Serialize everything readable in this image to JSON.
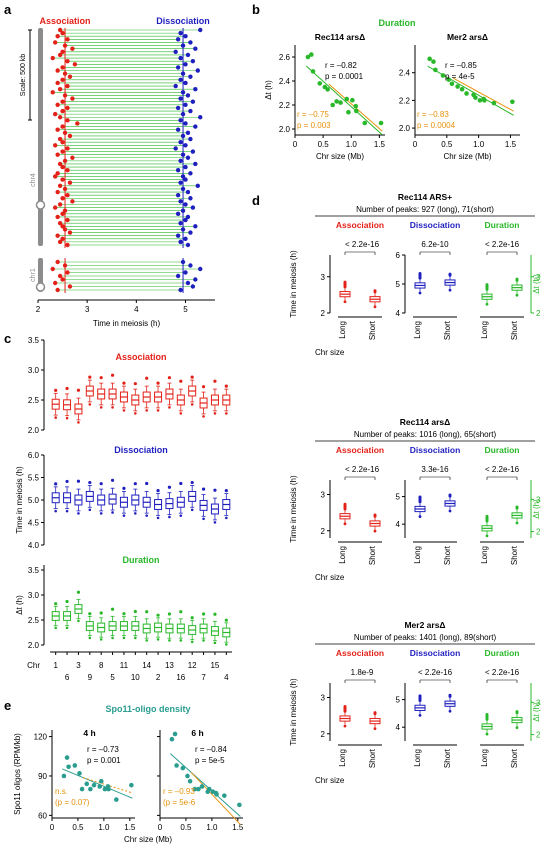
{
  "panel_labels": {
    "a": "a",
    "b": "b",
    "c": "c",
    "d": "d",
    "e": "e"
  },
  "colors": {
    "red": "#e32119",
    "blue": "#1f1fbf",
    "green": "#29b829",
    "orange": "#e8920c",
    "teal": "#2a9d8f",
    "grey": "#8c8c8c"
  },
  "chart_data": [
    {
      "panel": "a",
      "type": "scatter",
      "title_left": "Association",
      "title_right": "Dissociation",
      "scale_label": "Scale: 500 kb",
      "chromosome_labels": [
        "chr4",
        "chr1"
      ],
      "xlabel": "Time in meiosis (h)",
      "xticks": [
        2,
        3,
        4,
        5
      ],
      "xlim": [
        2,
        5.6
      ],
      "association_median": 2.55,
      "dissociation_median": 4.95,
      "chr4_association": [
        2.45,
        2.5,
        2.4,
        2.6,
        2.35,
        2.55,
        2.7,
        2.5,
        2.45,
        2.3,
        2.6,
        2.75,
        2.5,
        2.4,
        2.55,
        2.65,
        2.5,
        2.4,
        2.6,
        2.45,
        2.3,
        2.55,
        2.7,
        2.5,
        2.4,
        2.6,
        2.5,
        2.35,
        2.45,
        2.6,
        2.8,
        2.5,
        2.4,
        2.55,
        2.65,
        2.45,
        2.5,
        2.35,
        2.6,
        2.5,
        2.4,
        2.7,
        2.55,
        2.45,
        2.5,
        2.6,
        2.4,
        2.35,
        2.5,
        2.65,
        2.45,
        2.55,
        2.4,
        2.6,
        2.5,
        2.7,
        2.45,
        2.35,
        2.55,
        2.5,
        2.4,
        2.6,
        2.45,
        2.5,
        2.55,
        2.65,
        2.4,
        2.5,
        2.45,
        2.6
      ],
      "chr4_dissociation": [
        5.3,
        4.9,
        5.0,
        4.85,
        5.1,
        4.95,
        5.2,
        4.8,
        5.05,
        4.9,
        5.15,
        5.0,
        4.85,
        5.25,
        4.95,
        5.1,
        4.9,
        5.0,
        4.8,
        5.2,
        4.95,
        5.05,
        4.9,
        5.15,
        5.0,
        4.85,
        5.1,
        4.95,
        5.3,
        4.9,
        5.0,
        5.2,
        4.85,
        5.05,
        4.95,
        5.1,
        4.9,
        5.0,
        4.8,
        5.15,
        4.95,
        5.05,
        4.9,
        5.2,
        5.0,
        4.85,
        5.1,
        4.95,
        5.0,
        4.9,
        5.25,
        4.95,
        5.05,
        4.85,
        5.1,
        4.9,
        5.0,
        5.15,
        4.95,
        4.85,
        5.05,
        5.0,
        4.9,
        5.2,
        4.95,
        5.1,
        4.85,
        5.0,
        4.9,
        5.05
      ],
      "chr1_association": [
        2.4,
        2.55,
        2.3,
        2.6,
        2.45,
        2.5,
        2.35,
        2.65,
        2.4
      ],
      "chr1_dissociation": [
        4.95,
        5.1,
        5.3,
        5.0,
        4.85,
        5.2,
        5.05,
        5.15,
        4.9
      ]
    },
    {
      "panel": "b",
      "type": "scatter",
      "title": "Duration",
      "subplots": [
        {
          "title": "Rec114 arsΔ",
          "r_green": "r = –0.82",
          "p_green": "p = 0.0001",
          "r_orange": "r = –0.75",
          "p_orange": "p = 0.003",
          "ylabel": "Δt (h)",
          "xlabel": "Chr size (Mb)",
          "xticks": [
            0,
            0.5,
            1.0,
            1.5
          ],
          "yticks": [
            2.0,
            2.2,
            2.4,
            2.6
          ],
          "xlim": [
            0,
            1.6
          ],
          "ylim": [
            1.95,
            2.7
          ],
          "x": [
            0.23,
            0.29,
            0.32,
            0.44,
            0.53,
            0.58,
            0.67,
            0.74,
            0.81,
            0.92,
            0.95,
            1.02,
            1.08,
            1.09,
            1.24,
            1.53
          ],
          "y": [
            2.6,
            2.62,
            2.48,
            2.38,
            2.35,
            2.33,
            2.2,
            2.23,
            2.22,
            2.25,
            2.14,
            2.24,
            2.19,
            2.15,
            2.05,
            2.05
          ]
        },
        {
          "title": "Mer2 arsΔ",
          "r_green": "r = –0.85",
          "p_green": "p = 4e-5",
          "r_orange": "r = –0.83",
          "p_orange": "p = 0.0004",
          "ylabel": "",
          "xlabel": "Chr size (Mb)",
          "xticks": [
            0,
            0.5,
            1.0,
            1.5
          ],
          "yticks": [
            2.0,
            2.2,
            2.4
          ],
          "xlim": [
            0,
            1.65
          ],
          "ylim": [
            1.95,
            2.6
          ],
          "x": [
            0.23,
            0.29,
            0.32,
            0.44,
            0.53,
            0.58,
            0.67,
            0.74,
            0.81,
            0.92,
            0.95,
            1.02,
            1.08,
            1.09,
            1.24,
            1.53
          ],
          "y": [
            2.5,
            2.48,
            2.42,
            2.38,
            2.35,
            2.32,
            2.3,
            2.28,
            2.25,
            2.24,
            2.22,
            2.2,
            2.21,
            2.2,
            2.18,
            2.19
          ]
        }
      ]
    },
    {
      "panel": "c",
      "type": "box",
      "xlabel": "Chr",
      "chr_order_top": [
        "1",
        "3",
        "8",
        "11",
        "14",
        "13",
        "12",
        "15"
      ],
      "chr_order_bottom": [
        "6",
        "9",
        "5",
        "10",
        "2",
        "16",
        "7",
        "4"
      ],
      "subplots": [
        {
          "title": "Association",
          "ylabel": "Time in meiosis (h)",
          "yticks": [
            2.0,
            2.5,
            3.0,
            3.5
          ],
          "ylim": [
            2.0,
            3.5
          ],
          "medians": [
            2.43,
            2.42,
            2.35,
            2.65,
            2.6,
            2.6,
            2.55,
            2.5,
            2.55,
            2.55,
            2.6,
            2.5,
            2.65,
            2.45,
            2.5,
            2.5
          ]
        },
        {
          "title": "Dissociation",
          "ylabel": "",
          "yticks": [
            4.0,
            4.5,
            5.0,
            5.5,
            6.0
          ],
          "ylim": [
            4.0,
            6.0
          ],
          "medians": [
            5.05,
            5.05,
            5.0,
            5.08,
            5.0,
            5.02,
            4.95,
            5.0,
            4.95,
            4.9,
            4.92,
            4.95,
            5.08,
            4.88,
            4.8,
            4.9
          ]
        },
        {
          "title": "Duration",
          "ylabel": "Δt (h)",
          "yticks": [
            2.0,
            2.5,
            3.0,
            3.5
          ],
          "ylim": [
            2.0,
            3.6
          ],
          "medians": [
            2.58,
            2.58,
            2.72,
            2.38,
            2.35,
            2.38,
            2.38,
            2.38,
            2.33,
            2.35,
            2.33,
            2.33,
            2.3,
            2.33,
            2.28,
            2.25
          ]
        }
      ]
    },
    {
      "panel": "d",
      "type": "box",
      "groups": [
        {
          "title": "Rec114 ARS+",
          "peaks": "Number of peaks: 927 (long), 71(short)",
          "ps": [
            "< 2.2e-16",
            "6.2e-10",
            "< 2.2e-16"
          ],
          "assoc": {
            "ylim": [
              2,
              3.6
            ],
            "yticks": [
              2,
              3
            ],
            "long": 2.52,
            "short": 2.38
          },
          "dissoc": {
            "ylim": [
              4,
              6
            ],
            "yticks": [
              4,
              5,
              6
            ],
            "long": 4.95,
            "short": 5.05
          },
          "dur": {
            "ylim": [
              2,
              3.6
            ],
            "yticks": [
              2,
              3
            ],
            "long": 2.45,
            "short": 2.7
          }
        },
        {
          "title": "Rec114 arsΔ",
          "peaks": "Number of peaks: 1016 (long), 65(short)",
          "ps": [
            "< 2.2e-16",
            "3.3e-16",
            "< 2.2e-16"
          ],
          "assoc": {
            "ylim": [
              1.8,
              3.4
            ],
            "yticks": [
              2,
              3
            ],
            "long": 2.4,
            "short": 2.2
          },
          "dissoc": {
            "ylim": [
              3.5,
              5.6
            ],
            "yticks": [
              4,
              5
            ],
            "long": 4.55,
            "short": 4.75
          },
          "dur": {
            "ylim": [
              1.8,
              3.6
            ],
            "yticks": [
              2,
              3
            ],
            "long": 2.1,
            "short": 2.5
          }
        },
        {
          "title": "Mer2 arsΔ",
          "peaks": "Number of peaks: 1401 (long), 89(short)",
          "ps": [
            "1.8e-9",
            "< 2.2e-16",
            "< 2.2e-16"
          ],
          "assoc": {
            "ylim": [
              1.8,
              3.4
            ],
            "yticks": [
              2,
              3
            ],
            "long": 2.42,
            "short": 2.35
          },
          "dissoc": {
            "ylim": [
              3.5,
              5.6
            ],
            "yticks": [
              4,
              5
            ],
            "long": 4.7,
            "short": 4.85
          },
          "dur": {
            "ylim": [
              1.8,
              3.6
            ],
            "yticks": [
              2,
              3
            ],
            "long": 2.25,
            "short": 2.45
          }
        }
      ],
      "headers": [
        "Association",
        "Dissociation",
        "Duration"
      ],
      "ylabel_left": "Time in meiosis (h)",
      "ylabel_right": "Δt (h)",
      "xlabel": "Chr size",
      "categories": [
        "Long",
        "Short"
      ]
    },
    {
      "panel": "e",
      "type": "scatter",
      "title": "Spo11-oligo density",
      "ylabel": "Spo11 oligos (RPM/kb)",
      "xlabel": "Chr size (Mb)",
      "subplots": [
        {
          "title": "4 h",
          "r_teal": "r = –0.73",
          "p_teal": "p = 0.001",
          "r_orange": "n.s.",
          "p_orange": "(p = 0.07)",
          "xticks": [
            0,
            0.5,
            1.0,
            1.5
          ],
          "yticks": [
            60,
            90,
            120
          ],
          "xlim": [
            0,
            1.6
          ],
          "ylim": [
            58,
            125
          ],
          "x": [
            0.23,
            0.29,
            0.32,
            0.44,
            0.53,
            0.58,
            0.67,
            0.74,
            0.81,
            0.92,
            0.95,
            1.02,
            1.08,
            1.09,
            1.24,
            1.53
          ],
          "y": [
            90,
            104,
            97,
            98,
            92,
            80,
            84,
            80,
            83,
            82,
            86,
            80,
            82,
            80,
            72,
            83
          ]
        },
        {
          "title": "6 h",
          "r_teal": "r = –0.84",
          "p_teal": "p = 5e-5",
          "r_orange": "r = –0.93",
          "p_orange": "(p = 5e-6",
          "xticks": [
            0,
            0.5,
            1.0,
            1.5
          ],
          "yticks": [
            60,
            90,
            120
          ],
          "xlim": [
            0,
            1.6
          ],
          "ylim": [
            58,
            125
          ],
          "x": [
            0.23,
            0.29,
            0.32,
            0.44,
            0.53,
            0.58,
            0.67,
            0.74,
            0.81,
            0.92,
            0.95,
            1.02,
            1.08,
            1.09,
            1.24,
            1.53
          ],
          "y": [
            118,
            122,
            98,
            96,
            90,
            86,
            80,
            80,
            82,
            78,
            80,
            78,
            77,
            76,
            75,
            68
          ]
        }
      ]
    }
  ]
}
